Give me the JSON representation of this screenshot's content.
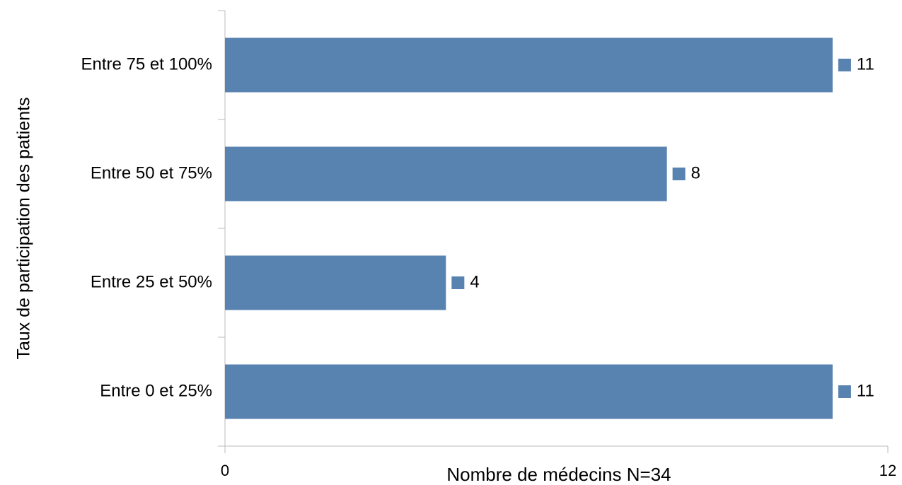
{
  "chart_data": {
    "type": "bar",
    "orientation": "horizontal",
    "x_label": "Nombre de médecins N=34",
    "y_label": "Taux de participation des patients",
    "categories": [
      "Entre 75 et 100%",
      "Entre 50 et 75%",
      "Entre 25 et 50%",
      "Entre 0 et 25%"
    ],
    "values": [
      11,
      8,
      4,
      11
    ],
    "color": "#5882b0",
    "xlim": [
      0,
      12
    ],
    "xticks": [
      0,
      12
    ],
    "grid": false
  }
}
